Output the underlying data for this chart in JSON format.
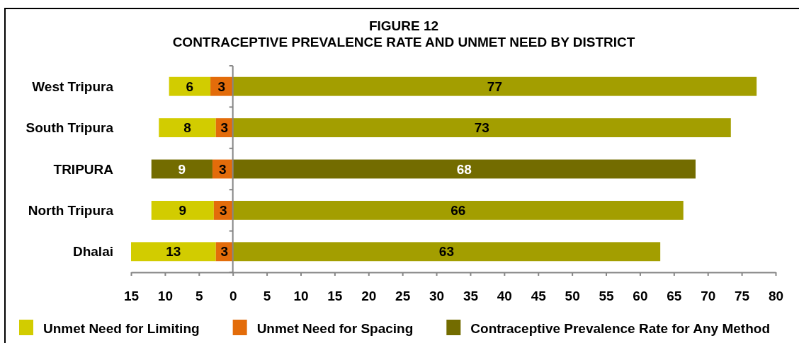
{
  "chart_data": {
    "type": "bar",
    "orientation": "horizontal",
    "title": "FIGURE 12",
    "subtitle": "CONTRACEPTIVE PREVALENCE RATE AND UNMET NEED BY DISTRICT",
    "categories": [
      "West Tripura",
      "South Tripura",
      "TRIPURA",
      "North Tripura",
      "Dhalai"
    ],
    "series": [
      {
        "name": "Unmet Need for Limiting",
        "color": "#d2cc00",
        "colors": [
          "#d2cc00",
          "#d2cc00",
          "#736c00",
          "#d2cc00",
          "#d2cc00"
        ],
        "values": [
          6.1,
          8.4,
          9.0,
          9.2,
          12.5
        ],
        "base": [
          -9.4,
          -10.9,
          -12.0,
          -12.0,
          -15.0
        ],
        "value_labels": [
          "6",
          "8",
          "9",
          "9",
          "13"
        ]
      },
      {
        "name": "Unmet Need for Spacing",
        "color": "#e36c0a",
        "values": [
          3.3,
          2.5,
          3.0,
          2.8,
          2.5
        ],
        "base": [
          -3.3,
          -2.5,
          -3.0,
          -2.8,
          -2.5
        ],
        "value_labels": [
          "3",
          "3",
          "3",
          "3",
          "3"
        ]
      },
      {
        "name": "Contraceptive Prevalence Rate for Any Method",
        "color": "#736c00",
        "colors": [
          "#a39e00",
          "#a39e00",
          "#736c00",
          "#a39e00",
          "#a39e00"
        ],
        "values": [
          77.2,
          73.4,
          68.2,
          66.4,
          63.0
        ],
        "value_labels": [
          "77",
          "73",
          "68",
          "66",
          "63"
        ]
      }
    ],
    "xlim": [
      -15,
      80
    ],
    "xticks": [
      {
        "value": -15,
        "label": "15"
      },
      {
        "value": -10,
        "label": "10"
      },
      {
        "value": -5,
        "label": "5"
      },
      0,
      5,
      10,
      15,
      20,
      25,
      30,
      35,
      40,
      45,
      50,
      55,
      60,
      65,
      70,
      75,
      80
    ],
    "legend": "bottom"
  }
}
